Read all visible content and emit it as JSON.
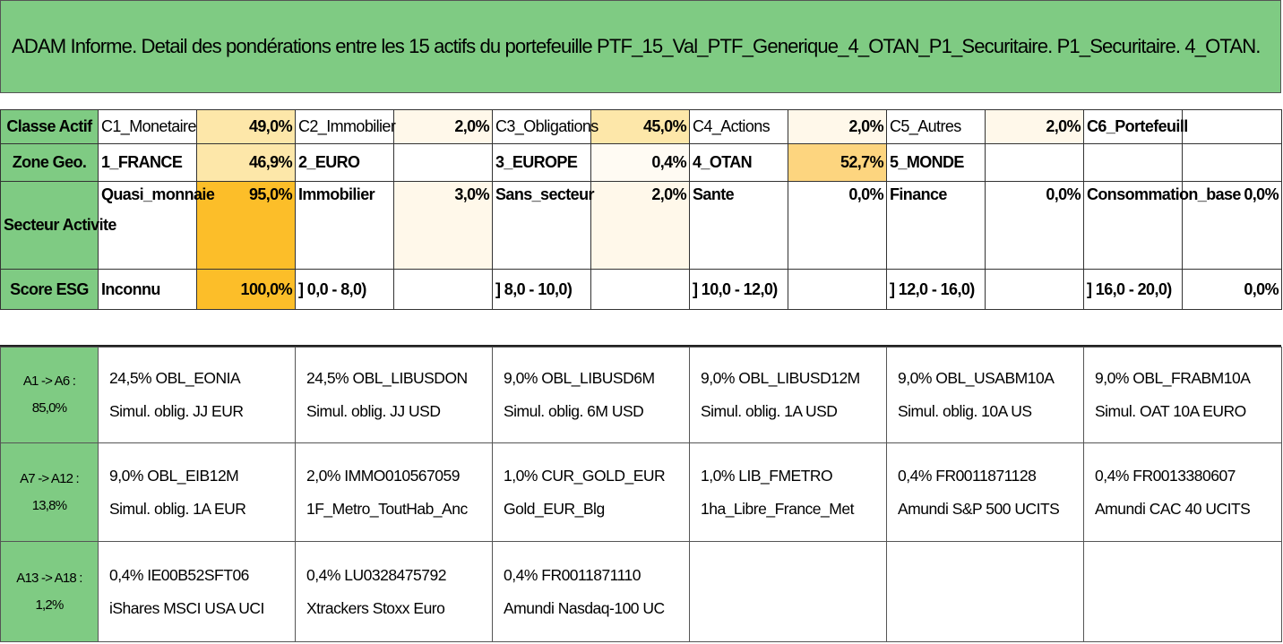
{
  "title": "ADAM Informe. Detail des pondérations entre les 15 actifs du portefeuille PTF_15_Val_PTF_Generique_4_OTAN_P1_Securitaire. P1_Securitaire. 4_OTAN.",
  "classe_actif": {
    "header": "Classe Actif",
    "items": [
      {
        "label": "C1_Monetaire",
        "value": "49,0%"
      },
      {
        "label": "C2_Immobilier",
        "value": "2,0%"
      },
      {
        "label": "C3_Obligations",
        "value": "45,0%"
      },
      {
        "label": "C4_Actions",
        "value": "2,0%"
      },
      {
        "label": "C5_Autres",
        "value": "2,0%"
      },
      {
        "label": "C6_Portefeuill",
        "value": ""
      }
    ]
  },
  "zone_geo": {
    "header": "Zone Geo.",
    "items": [
      {
        "label": "1_FRANCE",
        "value": "46,9%"
      },
      {
        "label": "2_EURO",
        "value": ""
      },
      {
        "label": "3_EUROPE",
        "value": "0,4%"
      },
      {
        "label": "4_OTAN",
        "value": "52,7%"
      },
      {
        "label": "5_MONDE",
        "value": ""
      },
      {
        "label": "",
        "value": ""
      }
    ]
  },
  "secteur": {
    "header": "Secteur Activite",
    "items": [
      {
        "label": "Quasi_monnaie",
        "value": "95,0%"
      },
      {
        "label": "Immobilier",
        "value": "3,0%"
      },
      {
        "label": "Sans_secteur",
        "value": "2,0%"
      },
      {
        "label": "Sante",
        "value": "0,0%"
      },
      {
        "label": "Finance",
        "value": "0,0%"
      },
      {
        "label": "Consommation_base",
        "value": "0,0%"
      }
    ]
  },
  "score_esg": {
    "header": "Score ESG",
    "items": [
      {
        "label": "Inconnu",
        "value": "100,0%"
      },
      {
        "label": "] 0,0 - 8,0)",
        "value": ""
      },
      {
        "label": "] 8,0 - 10,0)",
        "value": ""
      },
      {
        "label": "] 10,0 - 12,0)",
        "value": ""
      },
      {
        "label": "] 12,0 - 16,0)",
        "value": ""
      },
      {
        "label": "] 16,0 - 20,0)",
        "value": "0,0%"
      }
    ]
  },
  "asset_groups": [
    {
      "range": "A1 -> A6 :",
      "total": "85,0%",
      "assets": [
        {
          "line1": "24,5% OBL_EONIA",
          "line2": "Simul. oblig. JJ EUR"
        },
        {
          "line1": "24,5% OBL_LIBUSDON",
          "line2": "Simul. oblig. JJ USD"
        },
        {
          "line1": "9,0% OBL_LIBUSD6M",
          "line2": "Simul. oblig. 6M USD"
        },
        {
          "line1": "9,0% OBL_LIBUSD12M",
          "line2": "Simul. oblig. 1A USD"
        },
        {
          "line1": "9,0% OBL_USABM10A",
          "line2": "Simul. oblig. 10A US"
        },
        {
          "line1": "9,0% OBL_FRABM10A",
          "line2": "Simul. OAT 10A EURO"
        }
      ]
    },
    {
      "range": "A7 -> A12 :",
      "total": "13,8%",
      "assets": [
        {
          "line1": "9,0% OBL_EIB12M",
          "line2": "Simul. oblig. 1A EUR"
        },
        {
          "line1": "2,0% IMMO010567059",
          "line2": "1F_Metro_ToutHab_Anc"
        },
        {
          "line1": "1,0% CUR_GOLD_EUR",
          "line2": "Gold_EUR_Blg"
        },
        {
          "line1": "1,0% LIB_FMETRO",
          "line2": "1ha_Libre_France_Met"
        },
        {
          "line1": "0,4% FR0011871128",
          "line2": "Amundi S&P 500 UCITS"
        },
        {
          "line1": "0,4% FR0013380607",
          "line2": "Amundi CAC 40 UCITS"
        }
      ]
    },
    {
      "range": "A13 -> A18 :",
      "total": "1,2%",
      "assets": [
        {
          "line1": "0,4% IE00B52SFT06",
          "line2": "iShares MSCI USA UCI"
        },
        {
          "line1": "0,4% LU0328475792",
          "line2": "Xtrackers Stoxx Euro"
        },
        {
          "line1": "0,4% FR0011871110",
          "line2": "Amundi Nasdaq-100 UC"
        },
        {
          "line1": "",
          "line2": ""
        },
        {
          "line1": "",
          "line2": ""
        },
        {
          "line1": "",
          "line2": ""
        }
      ]
    }
  ],
  "colors": {
    "header_green": "#7fcb83",
    "highlight_light": "#fde7a9",
    "highlight_mid": "#fdd57f",
    "highlight_strong": "#fcbe29"
  }
}
